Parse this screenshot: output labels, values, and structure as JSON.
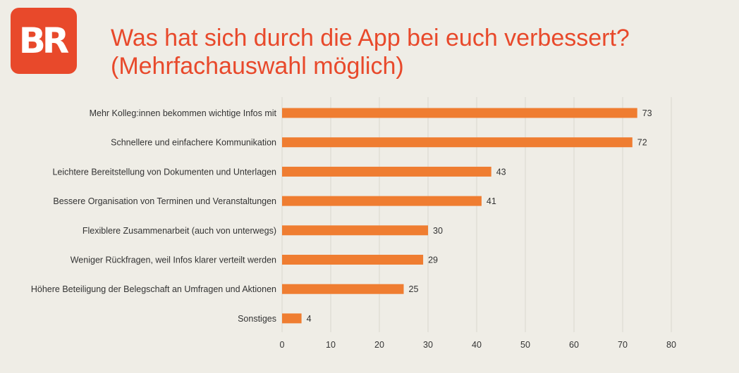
{
  "logo": {
    "text": "BR",
    "color": "#e8492b"
  },
  "title_lines": [
    "Was hat sich durch die App bei euch verbessert?",
    "(Mehrfachauswahl möglich)"
  ],
  "chart_data": {
    "type": "bar",
    "orientation": "horizontal",
    "categories": [
      "Mehr Kolleg:innen bekommen wichtige Infos mit",
      "Schnellere und einfachere Kommunikation",
      "Leichtere Bereitstellung von Dokumenten und Unterlagen",
      "Bessere Organisation von Terminen und Veranstaltungen",
      "Flexiblere Zusammenarbeit (auch von unterwegs)",
      "Weniger Rückfragen, weil Infos klarer verteilt werden",
      "Höhere Beteiligung der Belegschaft an Umfragen und Aktionen",
      "Sonstiges"
    ],
    "values": [
      73,
      72,
      43,
      41,
      30,
      29,
      25,
      4
    ],
    "xlim": [
      0,
      80
    ],
    "xticks": [
      0,
      10,
      20,
      30,
      40,
      50,
      60,
      70,
      80
    ],
    "grid": true,
    "bar_color": "#ef7d31",
    "data_labels": true
  }
}
